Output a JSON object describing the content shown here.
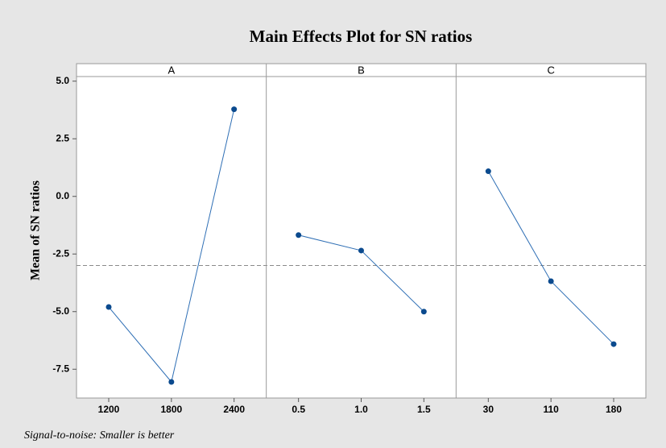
{
  "chart_data": {
    "type": "line",
    "title": "Main Effects Plot for SN ratios",
    "ylabel": "Mean of SN ratios",
    "footnote": "Signal-to-noise: Smaller is better",
    "color": "#2f6fb5",
    "marker_color": "#0b4a8e",
    "reference_line": -3.0,
    "ylim": [
      -8.75,
      5.2
    ],
    "yticks": [
      {
        "value": 5,
        "label": "5.0"
      },
      2.5,
      {
        "value": 0,
        "label": "0.0"
      },
      -2.5,
      {
        "value": -5,
        "label": "-5.0"
      },
      -7.5
    ],
    "panels": [
      {
        "name": "A",
        "categories": [
          "1200",
          "1800",
          "2400"
        ],
        "values": [
          -4.8,
          -8.05,
          3.78
        ]
      },
      {
        "name": "B",
        "categories": [
          "0.5",
          "1.0",
          "1.5"
        ],
        "values": [
          -1.68,
          -2.35,
          -5.0
        ]
      },
      {
        "name": "C",
        "categories": [
          "30",
          "110",
          "180"
        ],
        "values": [
          1.09,
          -3.68,
          -6.41
        ]
      }
    ]
  }
}
